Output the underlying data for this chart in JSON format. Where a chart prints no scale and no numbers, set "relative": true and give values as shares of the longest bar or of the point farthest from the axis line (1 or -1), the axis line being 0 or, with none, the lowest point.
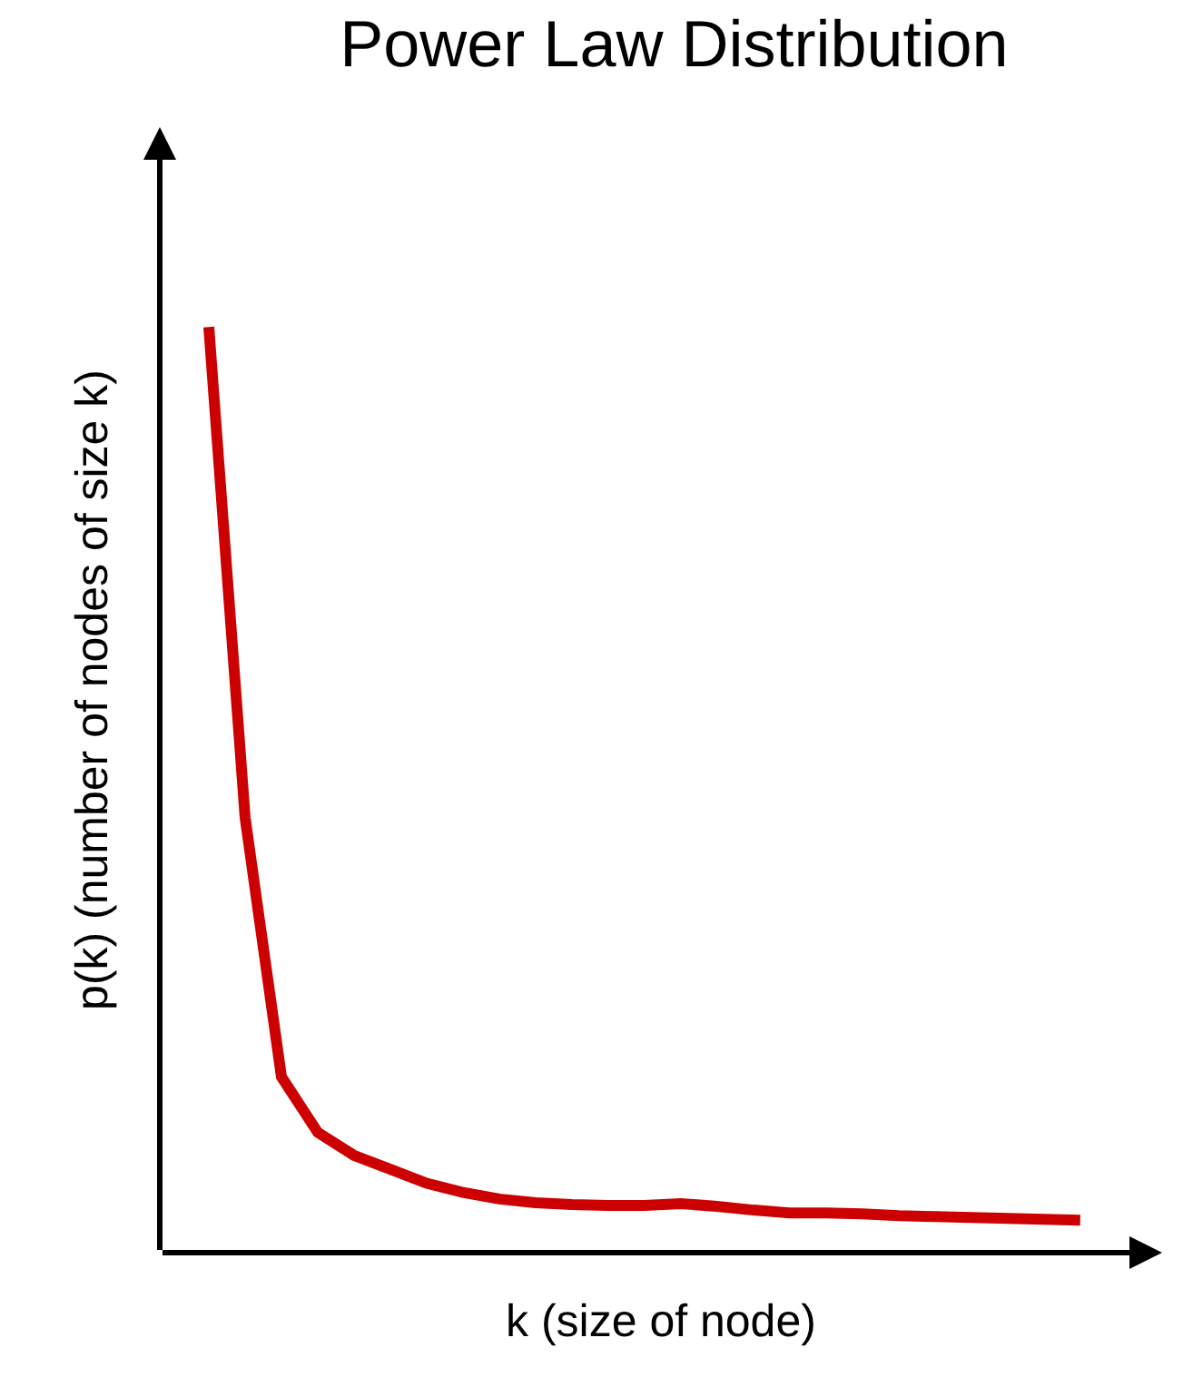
{
  "chart_data": {
    "type": "line",
    "title": "Power Law Distribution",
    "xlabel": "k (size of node)",
    "ylabel": "p(k) (number of nodes of size k)",
    "relative": true,
    "color": "#cc0000",
    "marker": "none",
    "line_style": "solid",
    "legend": false,
    "categories": [
      null,
      null,
      null,
      null,
      null,
      null,
      null,
      null,
      null,
      null,
      null,
      null,
      null,
      null,
      null,
      null,
      null,
      null,
      null,
      null,
      null,
      null,
      null,
      null,
      null
    ],
    "values": [
      1.0,
      0.47,
      0.19,
      0.13,
      0.105,
      0.09,
      0.075,
      0.065,
      0.058,
      0.054,
      0.052,
      0.051,
      0.051,
      0.053,
      0.05,
      0.046,
      0.043,
      0.043,
      0.042,
      0.04,
      0.039,
      0.038,
      0.037,
      0.036,
      0.035
    ]
  }
}
